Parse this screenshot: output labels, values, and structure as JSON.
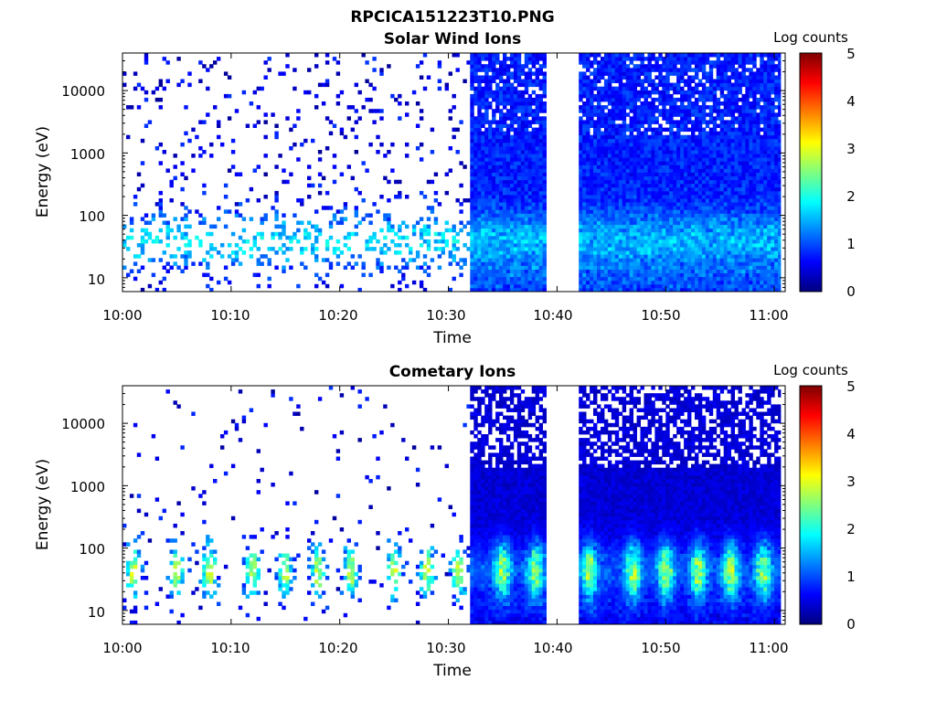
{
  "figure": {
    "title": "RPCICA151223T10.PNG"
  },
  "colormap": [
    "#00007f",
    "#0000ff",
    "#007fff",
    "#00ffff",
    "#7fff7f",
    "#ffff00",
    "#ff7f00",
    "#ff0000",
    "#7f0000"
  ],
  "chart_data": [
    {
      "type": "heatmap",
      "title": "Solar Wind Ions",
      "xlabel": "Time",
      "ylabel": "Energy (eV)",
      "colorbar_label": "Log counts",
      "x_ticks": [
        "10:00",
        "10:10",
        "10:20",
        "10:30",
        "10:40",
        "10:50",
        "11:00"
      ],
      "x_range": [
        "10:00",
        "11:01"
      ],
      "y_scale": "log",
      "y_ticks": [
        "10",
        "100",
        "1000",
        "10000"
      ],
      "y_range_eV": [
        6,
        40000
      ],
      "colorbar_ticks": [
        "0",
        "1",
        "2",
        "3",
        "4",
        "5"
      ],
      "colorbar_range": [
        0,
        5
      ],
      "data_gap": [
        "10:39",
        "10:42"
      ],
      "sparse_until": "10:32",
      "dense_from": "10:32",
      "background_level": 0.9,
      "peak_level": 2.6,
      "peak_energy_eV": [
        25,
        60
      ]
    },
    {
      "type": "heatmap",
      "title": "Cometary Ions",
      "xlabel": "Time",
      "ylabel": "Energy (eV)",
      "colorbar_label": "Log counts",
      "x_ticks": [
        "10:00",
        "10:10",
        "10:20",
        "10:30",
        "10:40",
        "10:50",
        "11:00"
      ],
      "x_range": [
        "10:00",
        "11:01"
      ],
      "y_scale": "log",
      "y_ticks": [
        "10",
        "100",
        "1000",
        "10000"
      ],
      "y_range_eV": [
        6,
        40000
      ],
      "colorbar_ticks": [
        "0",
        "1",
        "2",
        "3",
        "4",
        "5"
      ],
      "colorbar_range": [
        0,
        5
      ],
      "data_gap": [
        "10:39",
        "10:42"
      ],
      "sparse_until": "10:32",
      "dense_from": "10:32",
      "background_level": 0.5,
      "peak_level": 3.1,
      "peak_energy_eV": [
        30,
        60
      ],
      "burst_times": [
        "10:01",
        "10:05",
        "10:08",
        "10:12",
        "10:15",
        "10:18",
        "10:21",
        "10:25",
        "10:28",
        "10:31",
        "10:35",
        "10:38",
        "10:43",
        "10:47",
        "10:50",
        "10:53",
        "10:56",
        "10:59"
      ]
    }
  ]
}
